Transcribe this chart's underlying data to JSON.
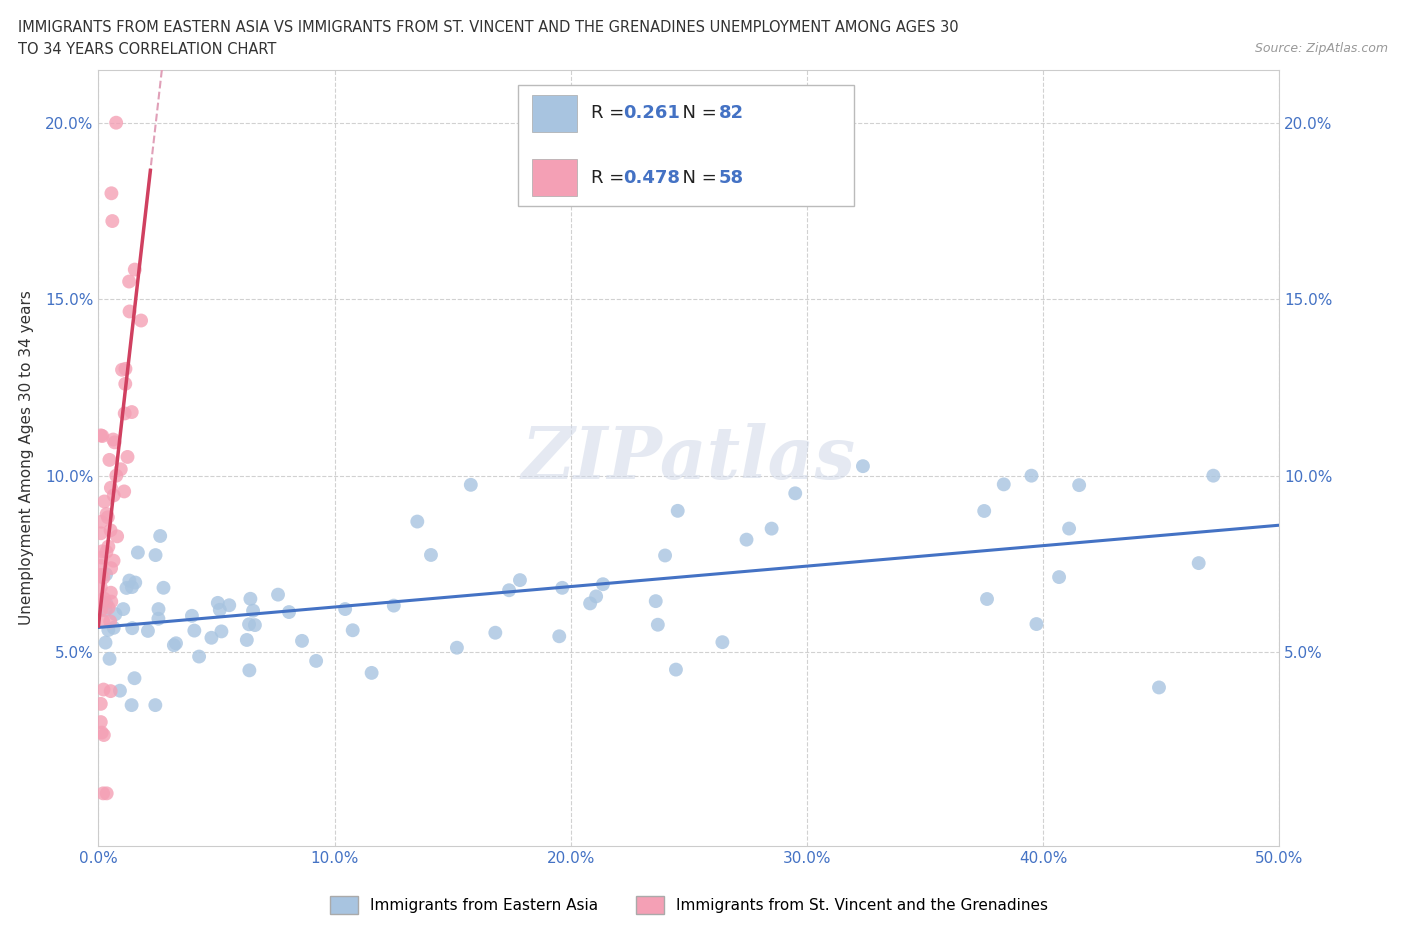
{
  "title_line1": "IMMIGRANTS FROM EASTERN ASIA VS IMMIGRANTS FROM ST. VINCENT AND THE GRENADINES UNEMPLOYMENT AMONG AGES 30",
  "title_line2": "TO 34 YEARS CORRELATION CHART",
  "source": "Source: ZipAtlas.com",
  "ylabel": "Unemployment Among Ages 30 to 34 years",
  "xlim": [
    0.0,
    0.5
  ],
  "ylim": [
    -0.005,
    0.215
  ],
  "xticks": [
    0.0,
    0.1,
    0.2,
    0.3,
    0.4,
    0.5
  ],
  "xticklabels": [
    "0.0%",
    "10.0%",
    "20.0%",
    "30.0%",
    "40.0%",
    "50.0%"
  ],
  "yticks": [
    0.05,
    0.1,
    0.15,
    0.2
  ],
  "yticklabels": [
    "5.0%",
    "10.0%",
    "15.0%",
    "20.0%"
  ],
  "blue_R": 0.261,
  "blue_N": 82,
  "pink_R": 0.478,
  "pink_N": 58,
  "blue_color": "#a8c4e0",
  "pink_color": "#f4a0b5",
  "blue_line_color": "#4472c4",
  "pink_line_color": "#d04060",
  "pink_dash_color": "#e0a0b8",
  "watermark": "ZIPatlas",
  "legend_label_blue": "Immigrants from Eastern Asia",
  "legend_label_pink": "Immigrants from St. Vincent and the Grenadines",
  "background_color": "#ffffff",
  "grid_color": "#cccccc",
  "tick_color": "#4472c4",
  "title_color": "#333333",
  "source_color": "#999999"
}
